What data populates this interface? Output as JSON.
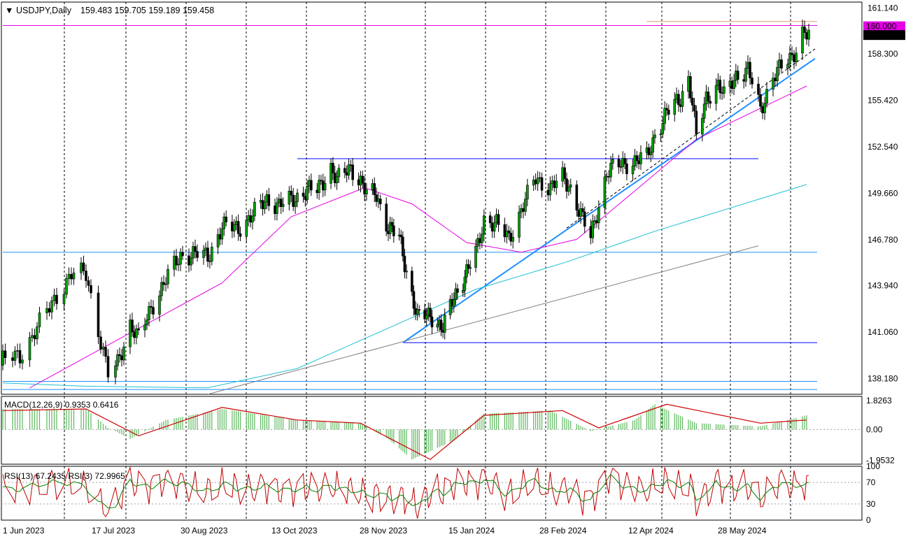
{
  "header": {
    "arrow": "▼",
    "symbol": "USDJPY,Daily",
    "ohlc": "159.483 159.705 159.189 159.458"
  },
  "chart_data": [
    {
      "type": "line",
      "title": "USDJPY,Daily",
      "kind": "candlestick",
      "ylim": [
        137.2,
        161.5
      ],
      "y_ticks": [
        "161.140",
        "158.300",
        "155.420",
        "152.540",
        "149.660",
        "146.780",
        "143.940",
        "141.060",
        "138.180"
      ],
      "x_ticks": [
        "1 Jun 2023",
        "17 Jul 2023",
        "30 Aug 2023",
        "13 Oct 2023",
        "28 Nov 2023",
        "15 Jan 2024",
        "28 Feb 2024",
        "12 Apr 2024",
        "28 May 2024"
      ],
      "price_labels": [
        {
          "text": "160.000",
          "value": 160.0,
          "color": "#e600e6"
        },
        {
          "text": "159.458",
          "value": 159.458,
          "color": "#000000"
        }
      ],
      "close_series": [
        {
          "date": "2023-06-01",
          "close": 139.3
        },
        {
          "date": "2023-06-08",
          "close": 139.6
        },
        {
          "date": "2023-06-15",
          "close": 141.3
        },
        {
          "date": "2023-06-22",
          "close": 143.1
        },
        {
          "date": "2023-06-29",
          "close": 144.6
        },
        {
          "date": "2023-07-05",
          "close": 144.7
        },
        {
          "date": "2023-07-10",
          "close": 141.2
        },
        {
          "date": "2023-07-14",
          "close": 138.4
        },
        {
          "date": "2023-07-18",
          "close": 139.1
        },
        {
          "date": "2023-07-24",
          "close": 141.6
        },
        {
          "date": "2023-07-28",
          "close": 140.6
        },
        {
          "date": "2023-08-03",
          "close": 142.6
        },
        {
          "date": "2023-08-10",
          "close": 144.3
        },
        {
          "date": "2023-08-17",
          "close": 145.8
        },
        {
          "date": "2023-08-24",
          "close": 145.9
        },
        {
          "date": "2023-08-30",
          "close": 145.7
        },
        {
          "date": "2023-09-06",
          "close": 147.6
        },
        {
          "date": "2023-09-14",
          "close": 147.5
        },
        {
          "date": "2023-09-21",
          "close": 148.3
        },
        {
          "date": "2023-09-28",
          "close": 149.3
        },
        {
          "date": "2023-10-04",
          "close": 148.9
        },
        {
          "date": "2023-10-11",
          "close": 149.3
        },
        {
          "date": "2023-10-18",
          "close": 149.9
        },
        {
          "date": "2023-10-23",
          "close": 149.8
        },
        {
          "date": "2023-10-30",
          "close": 151.3
        },
        {
          "date": "2023-11-02",
          "close": 150.4
        },
        {
          "date": "2023-11-09",
          "close": 151.3
        },
        {
          "date": "2023-11-14",
          "close": 150.4
        },
        {
          "date": "2023-11-17",
          "close": 149.6
        },
        {
          "date": "2023-11-22",
          "close": 149.6
        },
        {
          "date": "2023-11-28",
          "close": 147.5
        },
        {
          "date": "2023-12-04",
          "close": 146.9
        },
        {
          "date": "2023-12-08",
          "close": 144.9
        },
        {
          "date": "2023-12-14",
          "close": 141.9
        },
        {
          "date": "2023-12-21",
          "close": 142.2
        },
        {
          "date": "2023-12-28",
          "close": 141.2
        },
        {
          "date": "2024-01-03",
          "close": 143.3
        },
        {
          "date": "2024-01-09",
          "close": 144.5
        },
        {
          "date": "2024-01-15",
          "close": 145.9
        },
        {
          "date": "2024-01-19",
          "close": 148.1
        },
        {
          "date": "2024-01-25",
          "close": 147.7
        },
        {
          "date": "2024-01-31",
          "close": 146.9
        },
        {
          "date": "2024-02-06",
          "close": 148.6
        },
        {
          "date": "2024-02-13",
          "close": 150.6
        },
        {
          "date": "2024-02-20",
          "close": 150.0
        },
        {
          "date": "2024-02-26",
          "close": 150.6
        },
        {
          "date": "2024-03-01",
          "close": 150.0
        },
        {
          "date": "2024-03-07",
          "close": 148.0
        },
        {
          "date": "2024-03-11",
          "close": 146.9
        },
        {
          "date": "2024-03-15",
          "close": 149.0
        },
        {
          "date": "2024-03-19",
          "close": 150.9
        },
        {
          "date": "2024-03-26",
          "close": 151.5
        },
        {
          "date": "2024-04-02",
          "close": 151.6
        },
        {
          "date": "2024-04-08",
          "close": 151.9
        },
        {
          "date": "2024-04-12",
          "close": 153.3
        },
        {
          "date": "2024-04-18",
          "close": 154.6
        },
        {
          "date": "2024-04-25",
          "close": 155.6
        },
        {
          "date": "2024-04-29",
          "close": 156.8
        },
        {
          "date": "2024-05-01",
          "close": 155.2
        },
        {
          "date": "2024-05-03",
          "close": 153.0
        },
        {
          "date": "2024-05-08",
          "close": 155.6
        },
        {
          "date": "2024-05-14",
          "close": 156.4
        },
        {
          "date": "2024-05-17",
          "close": 155.6
        },
        {
          "date": "2024-05-23",
          "close": 157.0
        },
        {
          "date": "2024-05-29",
          "close": 157.3
        },
        {
          "date": "2024-06-04",
          "close": 154.8
        },
        {
          "date": "2024-06-10",
          "close": 157.0
        },
        {
          "date": "2024-06-14",
          "close": 157.4
        },
        {
          "date": "2024-06-19",
          "close": 158.1
        },
        {
          "date": "2024-06-24",
          "close": 159.7
        },
        {
          "date": "2024-06-27",
          "close": 159.458
        }
      ],
      "moving_averages": [
        {
          "color": "#e600e6",
          "points": [
            {
              "date": "2023-06-12",
              "value": 137.6
            },
            {
              "date": "2023-07-24",
              "value": 141.0
            },
            {
              "date": "2023-09-06",
              "value": 144.1
            },
            {
              "date": "2023-10-10",
              "value": 148.2
            },
            {
              "date": "2023-11-16",
              "value": 150.0
            },
            {
              "date": "2023-12-11",
              "value": 149.0
            },
            {
              "date": "2024-01-10",
              "value": 146.6
            },
            {
              "date": "2024-02-06",
              "value": 146.0
            },
            {
              "date": "2024-03-04",
              "value": 146.8
            },
            {
              "date": "2024-04-02",
              "value": 149.8
            },
            {
              "date": "2024-05-03",
              "value": 153.0
            },
            {
              "date": "2024-06-26",
              "value": 156.3
            }
          ]
        },
        {
          "color": "#1ebfd2",
          "points": [
            {
              "date": "2023-06-01",
              "value": 137.9
            },
            {
              "date": "2023-07-05",
              "value": 137.7
            },
            {
              "date": "2023-08-30",
              "value": 137.6
            },
            {
              "date": "2023-10-13",
              "value": 138.8
            },
            {
              "date": "2023-11-28",
              "value": 141.3
            },
            {
              "date": "2024-01-15",
              "value": 143.7
            },
            {
              "date": "2024-02-28",
              "value": 145.4
            },
            {
              "date": "2024-04-12",
              "value": 147.3
            },
            {
              "date": "2024-06-26",
              "value": 150.2
            }
          ]
        }
      ],
      "trend_lines": [
        {
          "color": "#0000ff",
          "from": {
            "date": "2023-10-13",
            "value": 151.8
          },
          "to": {
            "date": "2024-06-03",
            "value": 151.8
          }
        },
        {
          "color": "#0000ff",
          "from": {
            "date": "2023-12-06",
            "value": 140.4
          },
          "to": {
            "date": "2024-07-01",
            "value": 140.4
          }
        },
        {
          "color": "#1e90ff",
          "from": {
            "date": "2023-12-06",
            "value": 140.4
          },
          "to": {
            "date": "2024-06-30",
            "value": 158.0
          }
        },
        {
          "color": "#808080",
          "from": {
            "date": "2023-08-30",
            "value": 137.2
          },
          "to": {
            "date": "2024-06-03",
            "value": 146.4
          }
        },
        {
          "color": "#000000",
          "dashed": true,
          "from": {
            "date": "2024-02-28",
            "value": 147.5
          },
          "to": {
            "date": "2024-06-30",
            "value": 158.6
          }
        },
        {
          "color": "#1e90ff",
          "from": {
            "date": "2023-06-01",
            "value": 146.0
          },
          "to": {
            "date": "2024-07-01",
            "value": 146.0
          }
        },
        {
          "color": "#1e90ff",
          "from": {
            "date": "2023-06-01",
            "value": 138.0
          },
          "to": {
            "date": "2024-07-01",
            "value": 138.0
          }
        },
        {
          "color": "#1e90ff",
          "from": {
            "date": "2023-06-01",
            "value": 137.5
          },
          "to": {
            "date": "2024-07-01",
            "value": 137.5
          }
        },
        {
          "color": "#e600e6",
          "from": {
            "date": "2023-06-01",
            "value": 160.05
          },
          "to": {
            "date": "2024-07-01",
            "value": 160.05
          }
        },
        {
          "color": "#e8966e",
          "from": {
            "date": "2024-04-08",
            "value": 160.3
          },
          "to": {
            "date": "2024-07-01",
            "value": 160.3
          }
        }
      ],
      "grid": true
    },
    {
      "type": "area",
      "title": "MACD(12,26,9) 0.9353 0.6416",
      "ylim": [
        -2.2,
        2.1
      ],
      "y_ticks": [
        "1.8263",
        "0.00",
        "-1.9532"
      ],
      "macd_line_value": 0.9353,
      "signal_value": 0.6416,
      "histogram": [
        {
          "date": "2023-06-01",
          "value": 1.3
        },
        {
          "date": "2023-07-05",
          "value": 1.3
        },
        {
          "date": "2023-07-14",
          "value": 0.1
        },
        {
          "date": "2023-07-24",
          "value": -0.6
        },
        {
          "date": "2023-08-10",
          "value": 0.6
        },
        {
          "date": "2023-09-06",
          "value": 1.3
        },
        {
          "date": "2023-10-13",
          "value": 0.6
        },
        {
          "date": "2023-11-14",
          "value": 0.4
        },
        {
          "date": "2023-11-28",
          "value": -0.6
        },
        {
          "date": "2023-12-11",
          "value": -1.9
        },
        {
          "date": "2024-01-03",
          "value": -0.7
        },
        {
          "date": "2024-01-19",
          "value": 1.0
        },
        {
          "date": "2024-02-20",
          "value": 1.2
        },
        {
          "date": "2024-03-11",
          "value": -0.1
        },
        {
          "date": "2024-04-02",
          "value": 0.6
        },
        {
          "date": "2024-04-12",
          "value": 1.6
        },
        {
          "date": "2024-05-03",
          "value": 0.4
        },
        {
          "date": "2024-06-04",
          "value": 0.2
        },
        {
          "date": "2024-06-26",
          "value": 0.9
        }
      ],
      "signal": [
        {
          "date": "2023-06-01",
          "value": 1.2
        },
        {
          "date": "2023-07-05",
          "value": 1.3
        },
        {
          "date": "2023-07-28",
          "value": -0.4
        },
        {
          "date": "2023-09-06",
          "value": 1.4
        },
        {
          "date": "2023-10-13",
          "value": 0.6
        },
        {
          "date": "2023-11-14",
          "value": 0.4
        },
        {
          "date": "2023-12-21",
          "value": -1.9
        },
        {
          "date": "2024-01-19",
          "value": 0.9
        },
        {
          "date": "2024-02-26",
          "value": 1.2
        },
        {
          "date": "2024-03-15",
          "value": 0.1
        },
        {
          "date": "2024-04-18",
          "value": 1.6
        },
        {
          "date": "2024-06-04",
          "value": 0.4
        },
        {
          "date": "2024-06-26",
          "value": 0.6
        }
      ]
    },
    {
      "type": "line",
      "title": "RSI(13) 67.2435  RSI(3) 72.9965",
      "ylim": [
        0,
        100
      ],
      "y_ticks": [
        "100",
        "70",
        "30",
        "0"
      ],
      "levels": [
        70,
        30
      ],
      "series": [
        {
          "name": "RSI(13)",
          "color": "#008000",
          "value": 67.2435
        },
        {
          "name": "RSI(3)",
          "color": "#c00000",
          "value": 72.9965
        }
      ]
    }
  ]
}
